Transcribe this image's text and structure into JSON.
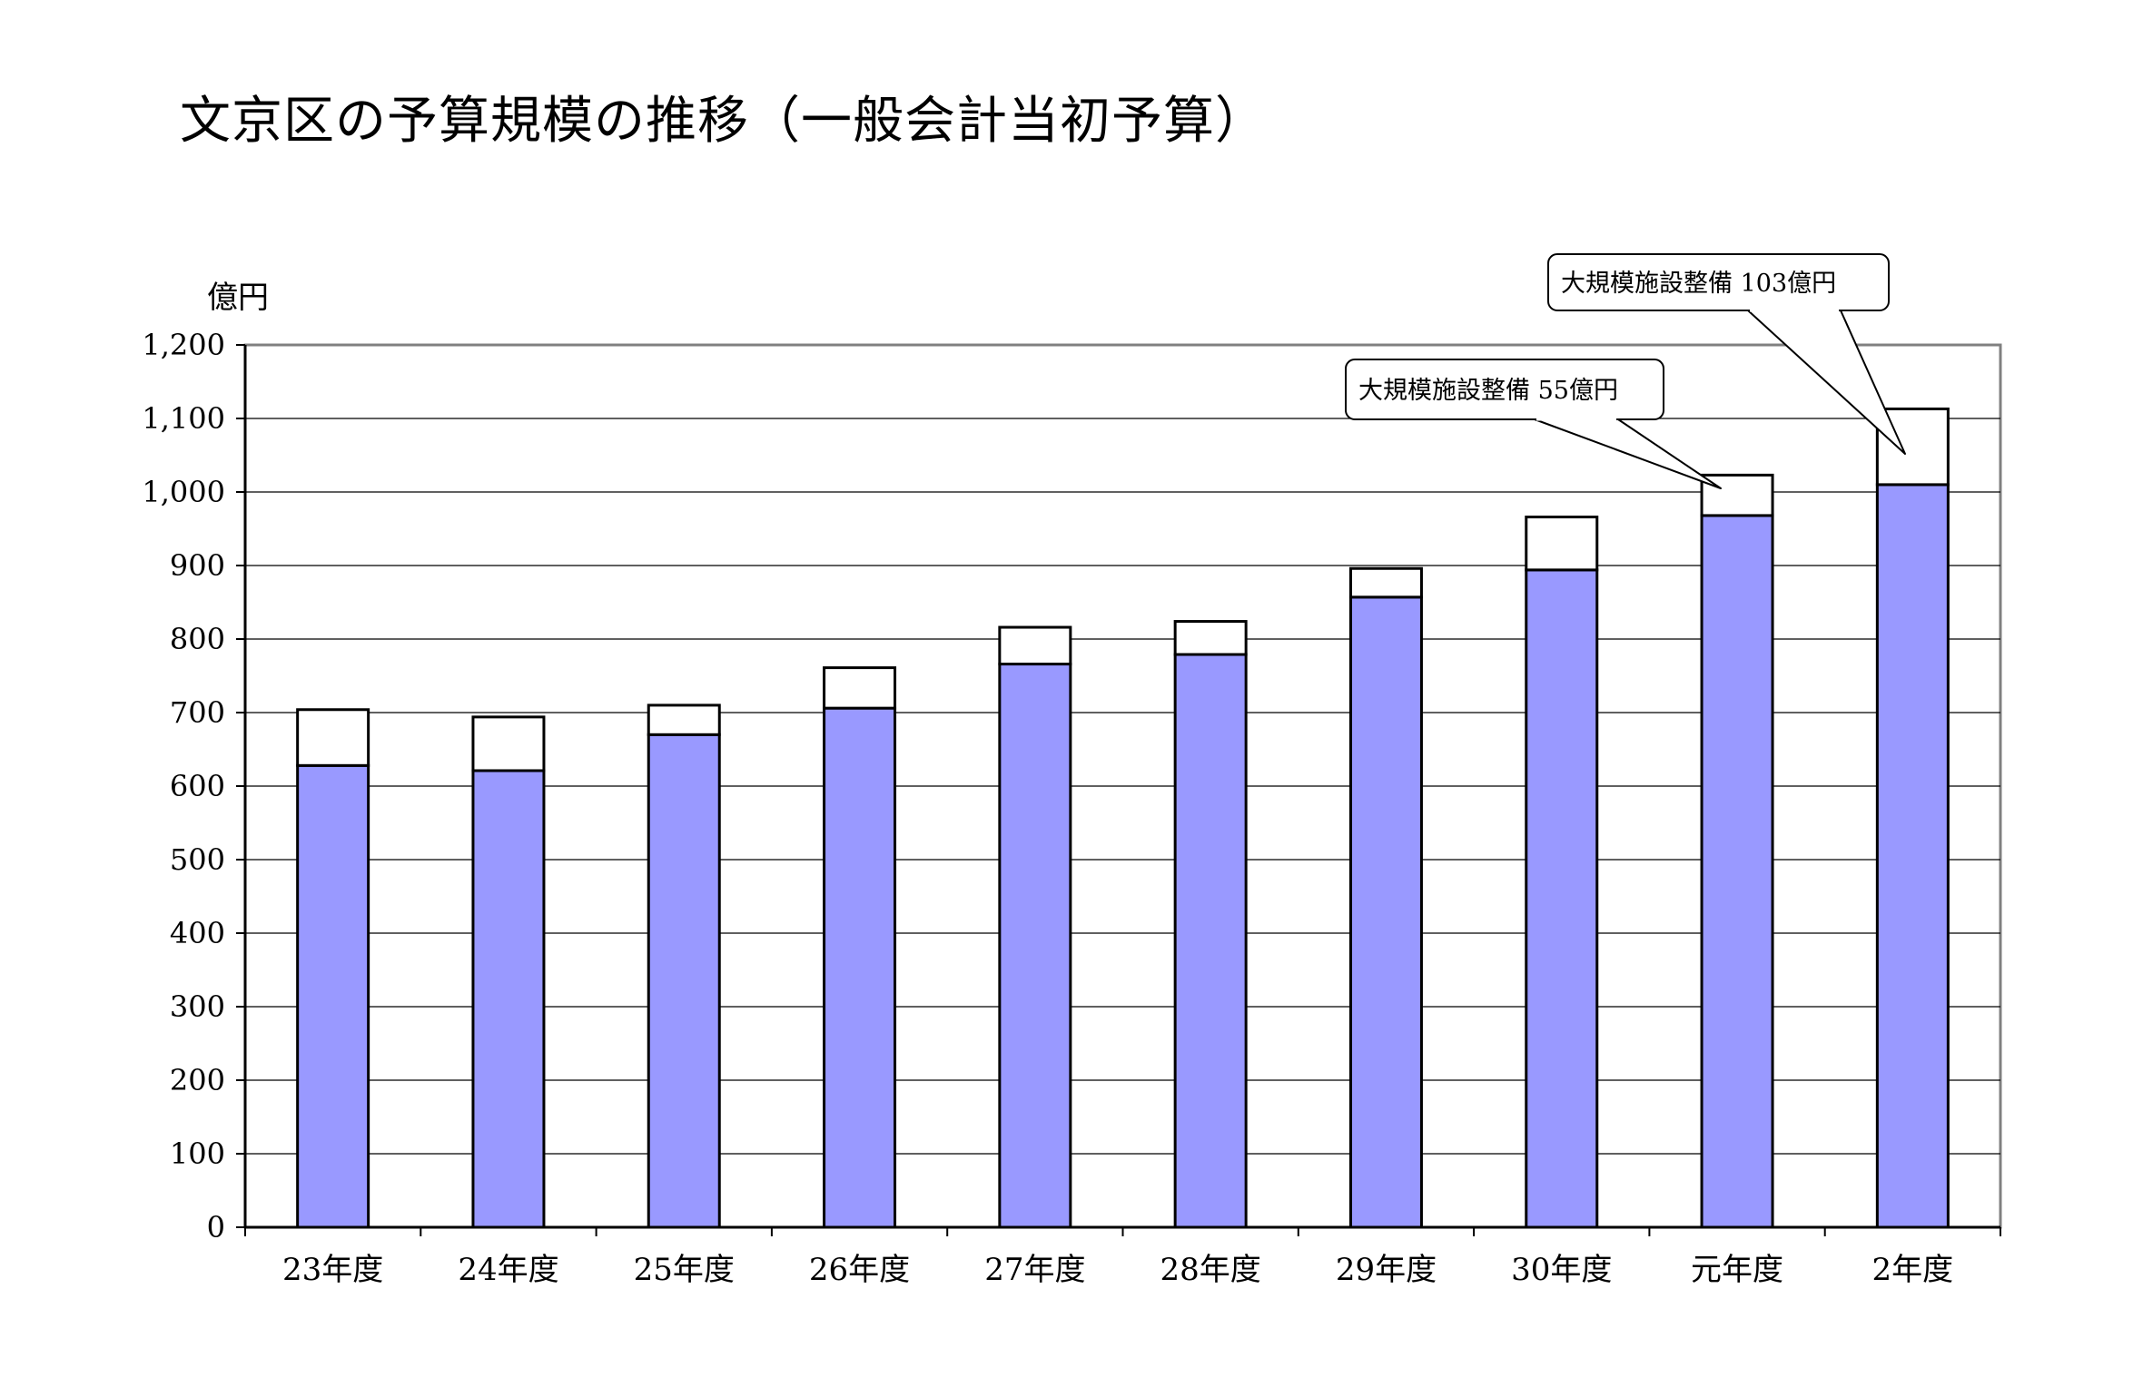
{
  "page": {
    "title": "文京区の予算規模の推移（一般会計当初予算）"
  },
  "chart_data": {
    "type": "bar",
    "stacked": true,
    "title": "文京区の予算規模の推移（一般会計当初予算）",
    "ylabel": "億円",
    "xlabel": "",
    "ylim": [
      0,
      1200
    ],
    "yticks": [
      0,
      100,
      200,
      300,
      400,
      500,
      600,
      700,
      800,
      900,
      1000,
      1100,
      1200
    ],
    "ytick_labels": [
      "0",
      "100",
      "200",
      "300",
      "400",
      "500",
      "600",
      "700",
      "800",
      "900",
      "1,000",
      "1,100",
      "1,200"
    ],
    "grid": true,
    "categories": [
      "23年度",
      "24年度",
      "25年度",
      "26年度",
      "27年度",
      "28年度",
      "29年度",
      "30年度",
      "元年度",
      "2年度"
    ],
    "series": [
      {
        "values": [
          628,
          621,
          670,
          706,
          766,
          779,
          857,
          894,
          968,
          1010
        ],
        "color": "#9999ff"
      },
      {
        "values": [
          76,
          73,
          40,
          55,
          50,
          45,
          39,
          72,
          55,
          103
        ],
        "color": "#ffffff"
      }
    ],
    "totals": [
      704,
      694,
      710,
      761,
      816,
      824,
      896,
      966,
      1023,
      1113
    ],
    "annotations": [
      {
        "text": "大規模施設整備 55億円",
        "category": "元年度"
      },
      {
        "text": "大規模施設整備 103億円",
        "category": "2年度"
      }
    ]
  }
}
